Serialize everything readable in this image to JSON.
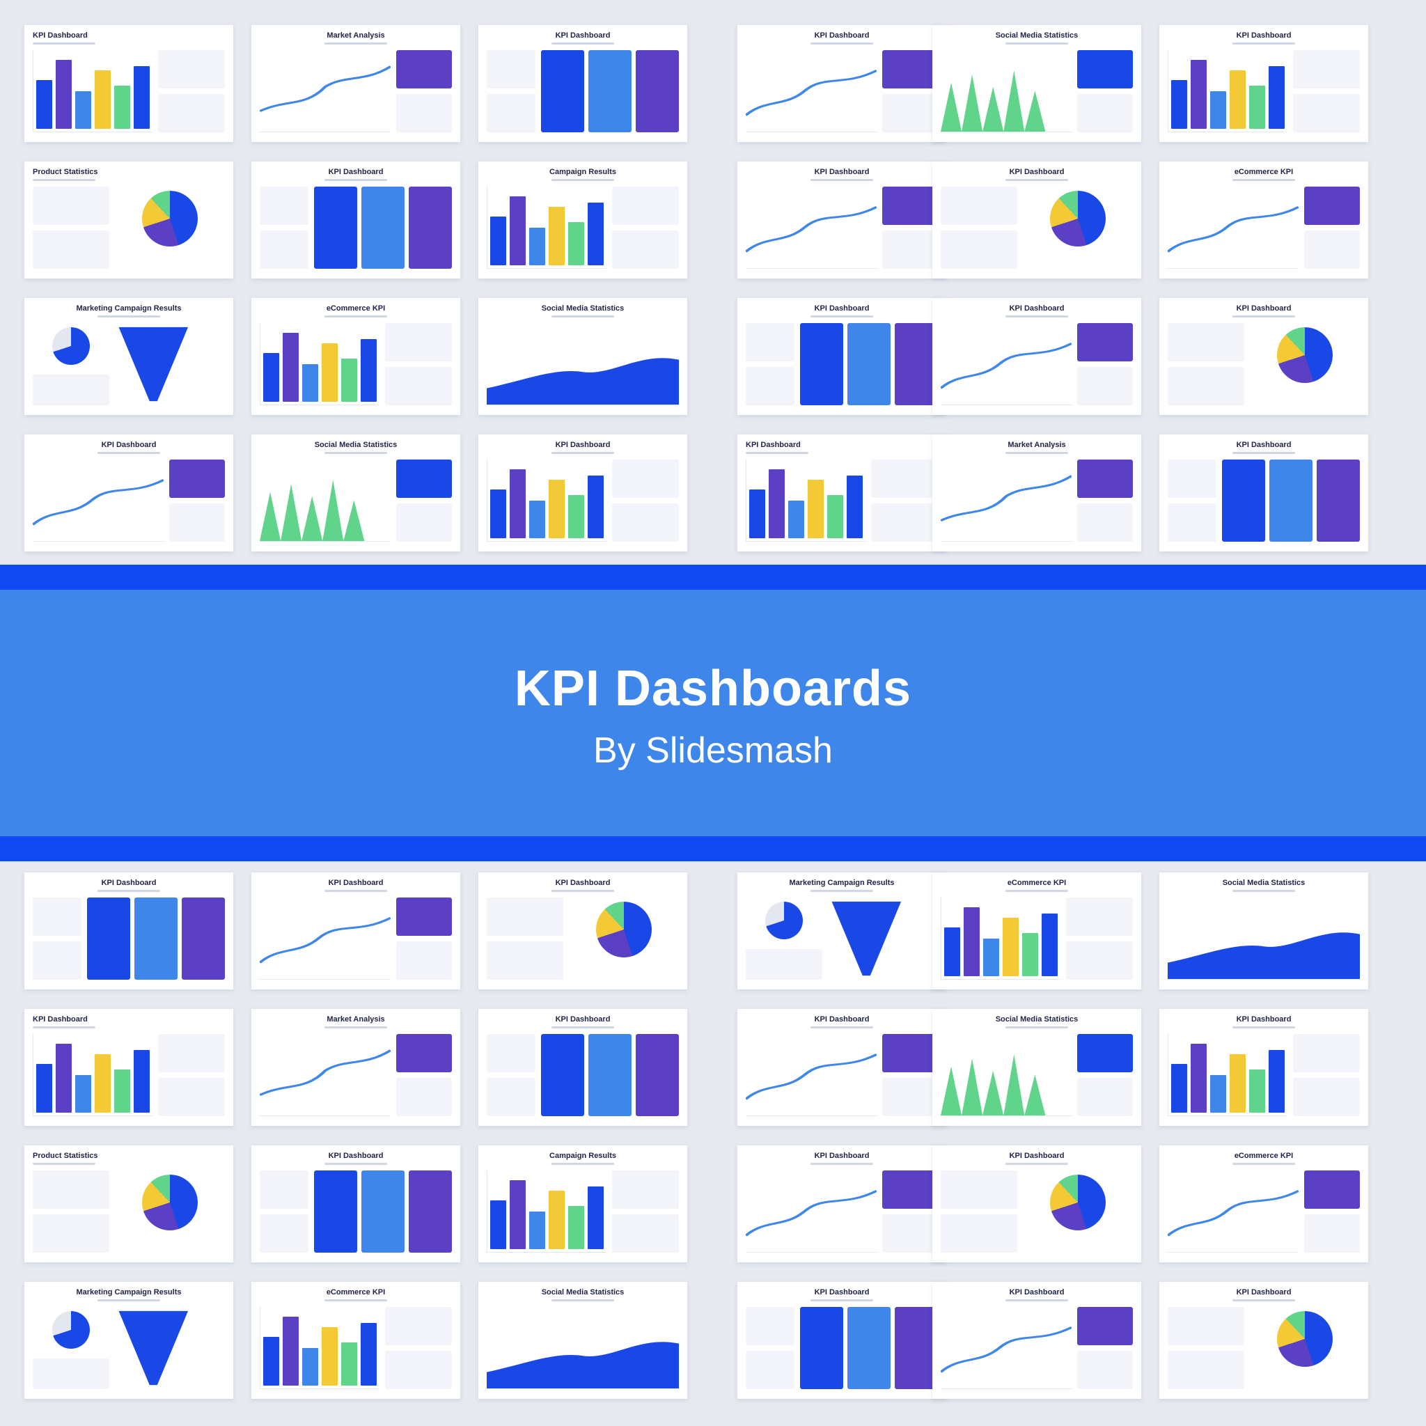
{
  "banner": {
    "title": "KPI Dashboards",
    "subtitle": "By Slidesmash"
  },
  "colors": {
    "blue": "#1a48e6",
    "mid_blue": "#3e86ea",
    "purple": "#5b3fc4",
    "yellow": "#f3c935",
    "green": "#5fd48a",
    "banner_bg": "#3e86ea",
    "stripe": "#1149f0"
  },
  "top_slides": [
    {
      "title": "KPI Dashboard",
      "kind": "bars",
      "align": "left"
    },
    {
      "title": "Market Analysis",
      "kind": "scatter"
    },
    {
      "title": "KPI Dashboard",
      "kind": "tiles"
    },
    {
      "title": "KPI Dashboard",
      "kind": "line"
    },
    {
      "title": "Social Media Statistics",
      "kind": "peaks"
    },
    {
      "title": "KPI Dashboard",
      "kind": "stats"
    },
    {
      "title": "Product Statistics",
      "kind": "donut",
      "align": "left"
    },
    {
      "title": "KPI Dashboard",
      "kind": "tiles"
    },
    {
      "title": "Campaign Results",
      "kind": "bars"
    },
    {
      "title": "KPI Dashboard",
      "kind": "line"
    },
    {
      "title": "KPI Dashboard",
      "kind": "donut"
    },
    {
      "title": "eCommerce KPI",
      "kind": "line"
    },
    {
      "title": "Marketing Campaign Results",
      "kind": "funnel"
    },
    {
      "title": "eCommerce KPI",
      "kind": "bars"
    },
    {
      "title": "Social Media Statistics",
      "kind": "area"
    },
    {
      "title": "KPI Dashboard",
      "kind": "tiles"
    },
    {
      "title": "KPI Dashboard",
      "kind": "line"
    },
    {
      "title": "KPI Dashboard",
      "kind": "donut"
    },
    {
      "title": "KPI Dashboard",
      "kind": "line"
    },
    {
      "title": "Social Media Statistics",
      "kind": "peaks"
    },
    {
      "title": "KPI Dashboard",
      "kind": "stats"
    },
    {
      "title": "KPI Dashboard",
      "kind": "bars",
      "align": "left"
    },
    {
      "title": "Market Analysis",
      "kind": "scatter"
    },
    {
      "title": "KPI Dashboard",
      "kind": "tiles"
    }
  ],
  "bottom_slides": [
    {
      "title": "KPI Dashboard",
      "kind": "tiles"
    },
    {
      "title": "KPI Dashboard",
      "kind": "line"
    },
    {
      "title": "KPI Dashboard",
      "kind": "donut"
    },
    {
      "title": "Marketing Campaign Results",
      "kind": "funnel"
    },
    {
      "title": "eCommerce KPI",
      "kind": "bars"
    },
    {
      "title": "Social Media Statistics",
      "kind": "area"
    },
    {
      "title": "KPI Dashboard",
      "kind": "bars",
      "align": "left"
    },
    {
      "title": "Market Analysis",
      "kind": "scatter"
    },
    {
      "title": "KPI Dashboard",
      "kind": "tiles"
    },
    {
      "title": "KPI Dashboard",
      "kind": "line"
    },
    {
      "title": "Social Media Statistics",
      "kind": "peaks"
    },
    {
      "title": "KPI Dashboard",
      "kind": "stats"
    },
    {
      "title": "Product Statistics",
      "kind": "donut",
      "align": "left"
    },
    {
      "title": "KPI Dashboard",
      "kind": "tiles"
    },
    {
      "title": "Campaign Results",
      "kind": "bars"
    },
    {
      "title": "KPI Dashboard",
      "kind": "line"
    },
    {
      "title": "KPI Dashboard",
      "kind": "donut"
    },
    {
      "title": "eCommerce KPI",
      "kind": "line"
    },
    {
      "title": "Marketing Campaign Results",
      "kind": "funnel"
    },
    {
      "title": "eCommerce KPI",
      "kind": "bars"
    },
    {
      "title": "Social Media Statistics",
      "kind": "area"
    },
    {
      "title": "KPI Dashboard",
      "kind": "tiles"
    },
    {
      "title": "KPI Dashboard",
      "kind": "line"
    },
    {
      "title": "KPI Dashboard",
      "kind": "donut"
    }
  ]
}
